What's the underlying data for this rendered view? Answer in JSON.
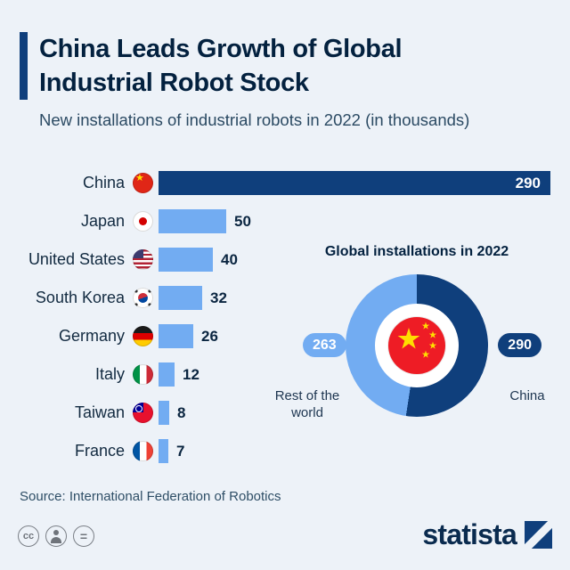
{
  "colors": {
    "navy": "#0f3f7c",
    "light_blue": "#72acf2",
    "background": "#edf2f8",
    "title_text": "#03213f",
    "subtitle_text": "#2b4a63",
    "value_text": "#0a2540"
  },
  "header": {
    "title_line1": "China Leads Growth of Global",
    "title_line2": "Industrial Robot Stock",
    "subtitle": "New installations of industrial robots in 2022 (in thousands)"
  },
  "chart_data": [
    {
      "type": "bar",
      "orientation": "horizontal",
      "title": "New installations of industrial robots in 2022 (in thousands)",
      "categories": [
        "China",
        "Japan",
        "United States",
        "South Korea",
        "Germany",
        "Italy",
        "Taiwan",
        "France"
      ],
      "values": [
        290,
        50,
        40,
        32,
        26,
        12,
        8,
        7
      ],
      "flags": [
        "china",
        "japan",
        "united-states",
        "south-korea",
        "germany",
        "italy",
        "taiwan",
        "france"
      ],
      "xlim": [
        0,
        290
      ],
      "value_labels": true,
      "highlight_category": "China",
      "highlight_color": "#0f3f7c",
      "bar_color": "#72acf2",
      "grid": false
    },
    {
      "type": "pie",
      "subtype": "donut",
      "title": "Global installations in 2022",
      "labels": [
        "China",
        "Rest of the world"
      ],
      "values": [
        290,
        263
      ],
      "colors": [
        "#0f3f7c",
        "#72acf2"
      ],
      "center_icon": "china-flag",
      "legend_position": "sides"
    }
  ],
  "source": "Source: International Federation of Robotics",
  "footer": {
    "logo_text": "statista",
    "cc_text": "cc",
    "equal_text": "=",
    "license_icons": [
      "cc",
      "person",
      "equals"
    ]
  }
}
